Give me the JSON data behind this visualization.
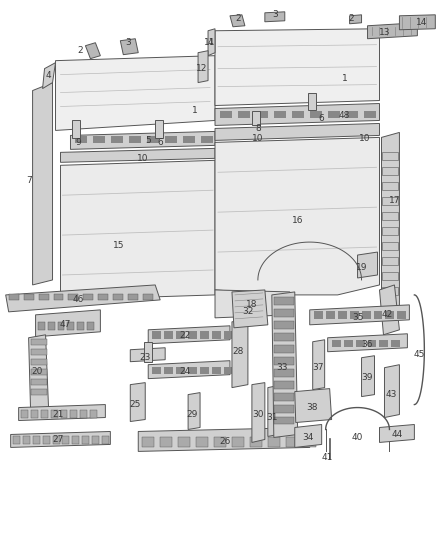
{
  "bg_color": "#ffffff",
  "fig_width": 4.38,
  "fig_height": 5.33,
  "dpi": 100,
  "label_color": "#3a3a3a",
  "stroke_color": "#555555",
  "fill_light": "#e8e8e8",
  "fill_mid": "#d0d0d0",
  "fill_dark": "#b8b8b8"
}
